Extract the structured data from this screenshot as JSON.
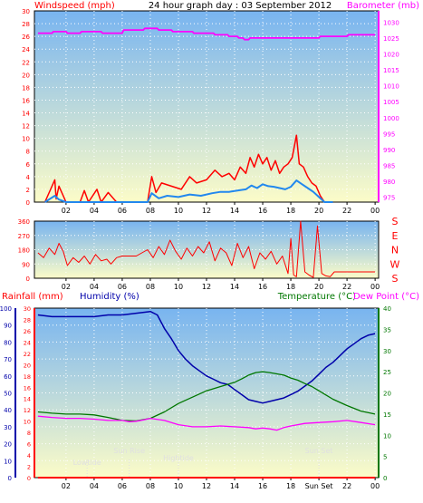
{
  "colors": {
    "wind": "#ff0000",
    "gust_avg": "#2288ee",
    "barometer": "#ff00ff",
    "rain": "#ff0000",
    "humidity": "#0000aa",
    "temperature": "#007700",
    "dewpoint": "#ff00ff",
    "sky_top": "#78b4f0",
    "sky_bottom": "#fcfcc8",
    "grid": "#ffffff",
    "frame": "#000000",
    "axis_dark": "#000000",
    "astro_text": "#e0e0e0"
  },
  "chart_data": [
    {
      "type": "line",
      "title": "24 hour graph day : 03 September 2012",
      "left_label": "Windspeed (mph)",
      "right_label": "Barometer (mb)",
      "x_ticks": [
        "02",
        "04",
        "06",
        "08",
        "10",
        "12",
        "14",
        "16",
        "18",
        "20",
        "22",
        "00"
      ],
      "y_left_ticks": [
        "0",
        "2",
        "4",
        "6",
        "8",
        "10",
        "12",
        "14",
        "16",
        "18",
        "20",
        "22",
        "24",
        "26",
        "28",
        "30"
      ],
      "y_left_range": [
        0,
        30
      ],
      "y_right_ticks": [
        "975",
        "980",
        "985",
        "990",
        "995",
        "1000",
        "1005",
        "1010",
        "1015",
        "1020",
        "1025",
        "1030"
      ],
      "y_right_range": [
        973.5,
        1033.5
      ],
      "series": [
        {
          "key": "wind",
          "x": [
            0.5,
            1.2,
            1.3,
            1.5,
            2.0,
            3.0,
            3.3,
            3.6,
            4.2,
            4.5,
            5.0,
            5.6,
            6.5,
            7.8,
            8.1,
            8.4,
            8.8,
            9.5,
            10.2,
            10.8,
            11.3,
            12.0,
            12.6,
            13.1,
            13.6,
            14.0,
            14.4,
            14.8,
            15.1,
            15.4,
            15.7,
            16.0,
            16.3,
            16.6,
            16.9,
            17.2,
            17.5,
            17.8,
            18.1,
            18.4,
            18.6,
            18.9,
            19.2,
            19.5,
            19.8,
            20.1,
            20.4,
            21.0
          ],
          "y": [
            0,
            3.5,
            0.5,
            2.5,
            0,
            0,
            1.8,
            0,
            2.0,
            0,
            1.5,
            0,
            0,
            0,
            4.0,
            1.5,
            3.0,
            2.5,
            2.0,
            4.0,
            3.0,
            3.5,
            5.0,
            4.0,
            4.5,
            3.5,
            5.5,
            4.5,
            7.0,
            5.5,
            7.5,
            6.0,
            7.0,
            5.0,
            6.5,
            4.5,
            5.5,
            6.0,
            7.0,
            10.5,
            6.0,
            5.5,
            4.0,
            3.0,
            2.5,
            1.0,
            0,
            0
          ]
        },
        {
          "key": "gust_avg",
          "x": [
            0.5,
            1.2,
            1.5,
            2.0,
            7.8,
            8.1,
            8.6,
            9.2,
            10.0,
            10.8,
            11.6,
            12.4,
            13.0,
            13.6,
            14.2,
            14.8,
            15.2,
            15.6,
            16.0,
            16.4,
            16.8,
            17.2,
            17.6,
            18.0,
            18.4,
            18.8,
            19.2,
            19.6,
            20.0,
            20.4,
            21.0
          ],
          "y": [
            0,
            1.0,
            0.4,
            0,
            0,
            1.4,
            0.6,
            1.0,
            0.8,
            1.2,
            1.0,
            1.4,
            1.6,
            1.6,
            1.8,
            2.0,
            2.6,
            2.2,
            2.8,
            2.5,
            2.4,
            2.2,
            2.0,
            2.4,
            3.4,
            2.8,
            2.2,
            1.6,
            0.8,
            0,
            0
          ]
        },
        {
          "key": "barometer",
          "x": [
            0.0,
            1.0,
            1.1,
            2.0,
            2.1,
            3.0,
            3.1,
            4.5,
            4.6,
            6.0,
            6.1,
            7.5,
            7.6,
            8.5,
            8.6,
            9.5,
            9.6,
            11.0,
            11.1,
            12.5,
            12.6,
            13.5,
            13.6,
            14.2,
            14.3,
            14.6,
            14.7,
            15.0,
            15.1,
            20.0,
            20.1,
            22.0,
            22.1,
            24.0
          ],
          "y": [
            1026.5,
            1026.5,
            1027.0,
            1027.0,
            1026.5,
            1026.5,
            1027.0,
            1027.0,
            1026.5,
            1026.5,
            1027.5,
            1027.5,
            1028.0,
            1028.0,
            1027.5,
            1027.5,
            1027.0,
            1027.0,
            1026.5,
            1026.5,
            1026.0,
            1026.0,
            1025.5,
            1025.5,
            1025.0,
            1025.0,
            1024.5,
            1024.5,
            1025.0,
            1025.0,
            1025.5,
            1025.5,
            1026.0,
            1026.0
          ]
        }
      ]
    },
    {
      "type": "line",
      "left_label": "",
      "x_ticks": [
        "02",
        "04",
        "06",
        "08",
        "10",
        "12",
        "14",
        "16",
        "18",
        "20",
        "22",
        "00"
      ],
      "y_left_ticks": [
        "0",
        "90",
        "180",
        "270",
        "360"
      ],
      "y_left_range": [
        0,
        360
      ],
      "compass": [
        "S",
        "E",
        "N",
        "W",
        "S"
      ],
      "series": [
        {
          "key": "direction",
          "x": [
            0.0,
            0.4,
            0.8,
            1.2,
            1.5,
            1.8,
            2.1,
            2.5,
            2.9,
            3.3,
            3.7,
            4.1,
            4.5,
            4.9,
            5.2,
            5.6,
            6.0,
            7.0,
            7.8,
            8.2,
            8.6,
            9.0,
            9.4,
            9.8,
            10.2,
            10.6,
            11.0,
            11.4,
            11.8,
            12.2,
            12.6,
            13.0,
            13.4,
            13.8,
            14.2,
            14.6,
            15.0,
            15.4,
            15.8,
            16.2,
            16.6,
            17.0,
            17.4,
            17.8,
            18.0,
            18.2,
            18.4,
            18.7,
            19.0,
            19.3,
            19.6,
            19.9,
            20.2,
            20.5,
            20.8,
            21.1,
            24.0
          ],
          "y": [
            160,
            130,
            190,
            150,
            220,
            170,
            80,
            130,
            100,
            140,
            90,
            150,
            110,
            120,
            90,
            130,
            140,
            140,
            180,
            130,
            200,
            150,
            240,
            170,
            120,
            190,
            140,
            200,
            160,
            230,
            110,
            190,
            160,
            80,
            220,
            130,
            200,
            60,
            160,
            120,
            170,
            90,
            140,
            30,
            250,
            20,
            10,
            360,
            40,
            20,
            5,
            330,
            30,
            15,
            10,
            40,
            40
          ]
        }
      ]
    },
    {
      "type": "line",
      "left_label": "Rainfall (mm)",
      "left_label_2": "Humidity (%)",
      "right_label": "Temperature (°C)",
      "right_label_2": "Dew Point (°C)",
      "x_ticks": [
        "02",
        "04",
        "06",
        "08",
        "10",
        "12",
        "14",
        "16",
        "18",
        "Sun Set",
        "22",
        "00"
      ],
      "y_rain_ticks": [
        "0",
        "2",
        "4",
        "6",
        "8",
        "10",
        "12",
        "14",
        "16",
        "18",
        "20",
        "22",
        "24",
        "26",
        "28",
        "30"
      ],
      "y_rain_range": [
        0,
        30
      ],
      "y_humidity_ticks": [
        "0",
        "10",
        "20",
        "30",
        "40",
        "50",
        "60",
        "70",
        "80",
        "90",
        "100"
      ],
      "y_humidity_range": [
        0,
        100
      ],
      "y_temp_ticks": [
        "0",
        "5",
        "10",
        "15",
        "20",
        "25",
        "30",
        "35",
        "40"
      ],
      "y_temp_range": [
        0,
        40
      ],
      "annotations": [
        "Lowtide",
        "Sun Rise",
        "Hightide"
      ],
      "annotation_hours": [
        3.5,
        6.5,
        10.0,
        20.0
      ],
      "series": [
        {
          "key": "humidity",
          "x": [
            0.0,
            1.0,
            2.0,
            3.0,
            4.0,
            5.0,
            6.0,
            7.0,
            8.0,
            8.5,
            9.0,
            9.5,
            10.0,
            10.5,
            11.0,
            11.5,
            12.0,
            12.5,
            13.0,
            13.5,
            14.0,
            14.5,
            15.0,
            15.5,
            16.0,
            16.5,
            17.0,
            17.5,
            18.0,
            18.5,
            19.0,
            19.5,
            20.0,
            20.5,
            21.0,
            21.5,
            22.0,
            22.5,
            23.0,
            23.5,
            24.0
          ],
          "y": [
            96,
            95,
            95,
            95,
            95,
            96,
            96,
            97,
            98,
            96,
            88,
            82,
            75,
            70,
            66,
            63,
            60,
            58,
            56,
            55,
            52,
            49,
            46,
            45,
            44,
            45,
            46,
            47,
            49,
            51,
            54,
            57,
            61,
            65,
            68,
            72,
            76,
            79,
            82,
            84,
            85
          ]
        },
        {
          "key": "temperature",
          "x": [
            0.0,
            1.0,
            2.0,
            3.0,
            4.0,
            5.0,
            6.0,
            7.0,
            8.0,
            9.0,
            10.0,
            11.0,
            12.0,
            13.0,
            14.0,
            14.5,
            15.0,
            15.5,
            16.0,
            16.5,
            17.0,
            17.5,
            18.0,
            18.5,
            19.0,
            19.5,
            20.0,
            20.5,
            21.0,
            22.0,
            23.0,
            24.0
          ],
          "y": [
            15.5,
            15.2,
            15.0,
            15.0,
            14.8,
            14.2,
            13.5,
            13.4,
            14.0,
            15.5,
            17.5,
            19.0,
            20.5,
            21.5,
            22.5,
            23.3,
            24.2,
            24.8,
            25.0,
            24.8,
            24.5,
            24.2,
            23.5,
            23.0,
            22.2,
            21.5,
            20.5,
            19.5,
            18.5,
            17.0,
            15.7,
            15.0
          ]
        },
        {
          "key": "dewpoint",
          "x": [
            0.0,
            1.0,
            2.0,
            3.0,
            4.0,
            5.0,
            6.0,
            6.5,
            7.0,
            7.5,
            8.0,
            9.0,
            10.0,
            11.0,
            12.0,
            13.0,
            14.0,
            15.0,
            15.5,
            16.0,
            16.5,
            17.0,
            17.5,
            18.0,
            19.0,
            20.0,
            21.0,
            22.0,
            23.0,
            24.0
          ],
          "y": [
            14.5,
            14.2,
            14.0,
            14.0,
            13.8,
            13.5,
            13.5,
            13.2,
            13.3,
            13.6,
            14.0,
            13.5,
            12.5,
            12.0,
            12.0,
            12.2,
            12.0,
            11.8,
            11.5,
            11.7,
            11.5,
            11.2,
            11.8,
            12.2,
            12.8,
            13.0,
            13.2,
            13.5,
            13.0,
            12.5
          ]
        },
        {
          "key": "rain",
          "x": [
            0.0,
            24.0
          ],
          "y": [
            0,
            0
          ]
        }
      ]
    }
  ]
}
